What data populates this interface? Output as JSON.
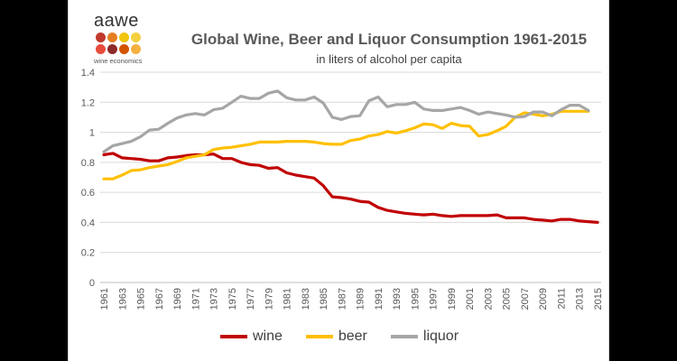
{
  "logo": {
    "word": "aawe",
    "subtitle": "wine economics",
    "dot_colors": [
      "#c0392b",
      "#e67e22",
      "#f1c40f",
      "#f4d03f",
      "#e74c3c",
      "#8e2a2a",
      "#d35400",
      "#f5b041"
    ]
  },
  "title": "Global Wine, Beer and Liquor Consumption 1961-2015",
  "subtitle": "in liters of alcohol per capita",
  "chart_data": {
    "type": "line",
    "title": "Global Wine, Beer and Liquor Consumption 1961-2015",
    "subtitle": "in liters of alcohol per capita",
    "xlabel": "",
    "ylabel": "",
    "ylim": [
      0,
      1.4
    ],
    "yticks": [
      "0",
      "0.2",
      "0.4",
      "0.6",
      "0.8",
      "1",
      "1.2",
      "1.4"
    ],
    "grid": true,
    "legend_position": "bottom",
    "x": [
      1961,
      1962,
      1963,
      1964,
      1965,
      1966,
      1967,
      1968,
      1969,
      1970,
      1971,
      1972,
      1973,
      1974,
      1975,
      1976,
      1977,
      1978,
      1979,
      1980,
      1981,
      1982,
      1983,
      1984,
      1985,
      1986,
      1987,
      1988,
      1989,
      1990,
      1991,
      1992,
      1993,
      1994,
      1995,
      1996,
      1997,
      1998,
      1999,
      2000,
      2001,
      2002,
      2003,
      2004,
      2005,
      2006,
      2007,
      2008,
      2009,
      2010,
      2011,
      2012,
      2013,
      2014,
      2015
    ],
    "xtick_labels": [
      "1961",
      "1963",
      "1965",
      "1967",
      "1969",
      "1971",
      "1973",
      "1975",
      "1977",
      "1979",
      "1981",
      "1983",
      "1985",
      "1987",
      "1989",
      "1991",
      "1993",
      "1995",
      "1997",
      "1999",
      "2001",
      "2003",
      "2005",
      "2007",
      "2009",
      "2011",
      "2013",
      "2015"
    ],
    "series": [
      {
        "name": "wine",
        "color": "#c00000",
        "values": [
          0.85,
          0.86,
          0.83,
          0.825,
          0.82,
          0.81,
          0.81,
          0.83,
          0.835,
          0.845,
          0.85,
          0.85,
          0.855,
          0.825,
          0.825,
          0.8,
          0.785,
          0.78,
          0.76,
          0.765,
          0.73,
          0.715,
          0.705,
          0.695,
          0.645,
          0.57,
          0.565,
          0.555,
          0.54,
          0.535,
          0.5,
          0.48,
          0.47,
          0.46,
          0.455,
          0.45,
          0.455,
          0.445,
          0.44,
          0.445,
          0.445,
          0.445,
          0.445,
          0.45,
          0.43,
          0.43,
          0.43,
          0.42,
          0.415,
          0.41,
          0.42,
          0.42,
          0.41,
          0.405,
          0.4
        ]
      },
      {
        "name": "beer",
        "color": "#ffc000",
        "values": [
          0.69,
          0.69,
          0.715,
          0.745,
          0.75,
          0.765,
          0.775,
          0.785,
          0.805,
          0.83,
          0.84,
          0.85,
          0.885,
          0.895,
          0.9,
          0.91,
          0.92,
          0.935,
          0.935,
          0.935,
          0.94,
          0.94,
          0.94,
          0.935,
          0.925,
          0.92,
          0.92,
          0.945,
          0.955,
          0.975,
          0.985,
          1.005,
          0.995,
          1.01,
          1.03,
          1.055,
          1.05,
          1.025,
          1.06,
          1.045,
          1.04,
          0.975,
          0.985,
          1.01,
          1.04,
          1.1,
          1.13,
          1.12,
          1.11,
          1.12,
          1.14,
          1.14,
          1.14,
          1.14,
          null
        ]
      },
      {
        "name": "liquor",
        "color": "#a6a6a6",
        "values": [
          0.87,
          0.91,
          0.925,
          0.94,
          0.97,
          1.015,
          1.02,
          1.06,
          1.095,
          1.115,
          1.125,
          1.115,
          1.15,
          1.16,
          1.2,
          1.24,
          1.225,
          1.225,
          1.26,
          1.275,
          1.23,
          1.215,
          1.215,
          1.235,
          1.195,
          1.1,
          1.085,
          1.105,
          1.11,
          1.21,
          1.235,
          1.17,
          1.185,
          1.185,
          1.2,
          1.155,
          1.145,
          1.145,
          1.155,
          1.165,
          1.145,
          1.12,
          1.135,
          1.125,
          1.115,
          1.1,
          1.105,
          1.135,
          1.135,
          1.11,
          1.15,
          1.18,
          1.18,
          1.145,
          null
        ]
      }
    ]
  }
}
